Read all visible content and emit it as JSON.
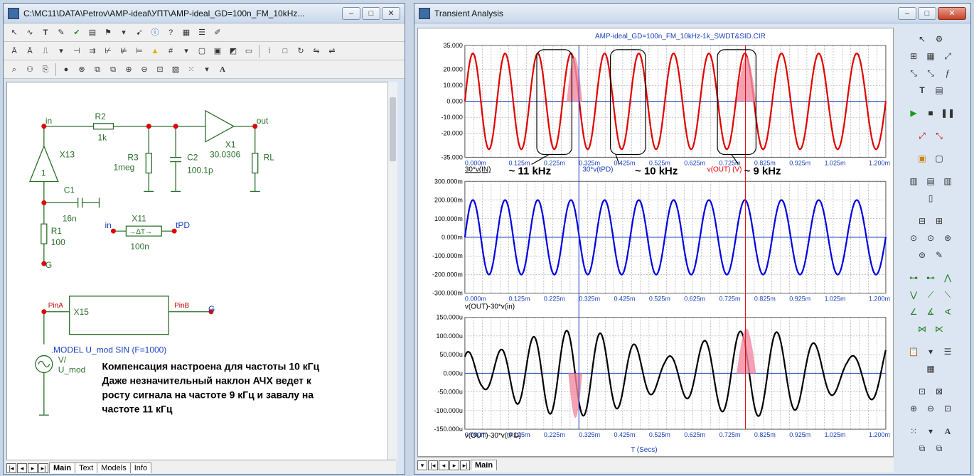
{
  "left_window": {
    "title": "C:\\MC11\\DATA\\Petrov\\AMP-ideal\\УПТ\\AMP-ideal_GD=100n_FM_10kHz...",
    "tabs": [
      {
        "label": "Main",
        "active": true
      },
      {
        "label": "Text",
        "active": false
      },
      {
        "label": "Models",
        "active": false
      },
      {
        "label": "Info",
        "active": false
      }
    ]
  },
  "schematic": {
    "nodes": {
      "in": "in",
      "out": "out",
      "g1": "G",
      "g2": "G",
      "in2": "in",
      "tpd": "tPD",
      "pina": "PinA",
      "pinb": "PinB"
    },
    "components": {
      "r2_name": "R2",
      "r2_val": "1k",
      "r3_name": "R3",
      "r3_val": "1meg",
      "c2_name": "C2",
      "c2_val": "100.1p",
      "x1_name": "X1",
      "x1_val": "30.0306",
      "rl_name": "RL",
      "x13_name": "X13",
      "x13_gain": "1",
      "c1_name": "C1",
      "c1_val": "16n",
      "r1_name": "R1",
      "r1_val": "100",
      "x11_name": "X11",
      "x11_val": "100n",
      "x11_sym": "→ΔT→",
      "x15_name": "X15",
      "v_model": ".MODEL U_mod SIN (F=1000)",
      "v_name": "V/",
      "v_src": "U_mod"
    },
    "note_lines": [
      "Компенсация настроена для частоты 10 кГц",
      "Даже незначительный наклон АЧХ ведет к",
      "росту сигнала на частоте 9 кГц и завалу на",
      "частоте 11 кГц"
    ]
  },
  "right_window": {
    "title": "Transient Analysis",
    "tabs": [
      {
        "label": "Main",
        "active": true
      }
    ]
  },
  "plot": {
    "title": "AMP-ideal_GD=100n_FM_10kHz-1k_SWDT&SID.CIR",
    "x_ticks": [
      "0.000m",
      "0.125m",
      "0.225m",
      "0.325m",
      "0.425m",
      "0.525m",
      "0.625m",
      "0.725m",
      "0.825m",
      "0.925m",
      "1.025m",
      "1.200m"
    ],
    "x_title": "T (Secs)",
    "cursor_times_ms": [
      0.325,
      0.8
    ],
    "panel1": {
      "y_ticks": [
        "35.000",
        "20.000",
        "10.000",
        "0.000",
        "-10.000",
        "-20.000",
        "-35.000"
      ],
      "y_values": [
        35,
        20,
        10,
        0,
        -10,
        -20,
        -35
      ],
      "legend": [
        "30*v(IN)",
        "30*v(tPD)",
        "v(OUT) (V)"
      ],
      "annotations": [
        "~ 11 kHz",
        "~ 10 kHz",
        "~ 9 kHz"
      ],
      "color": "#e00000"
    },
    "panel2": {
      "y_ticks": [
        "300.000m",
        "200.000m",
        "100.000m",
        "0.000m",
        "-100.000m",
        "-200.000m",
        "-300.000m"
      ],
      "y_values": [
        300,
        200,
        100,
        0,
        -100,
        -200,
        -300
      ],
      "legend": [
        "v(OUT)-30*v(in)"
      ],
      "color": "#0000e0"
    },
    "panel3": {
      "y_ticks": [
        "150.000u",
        "100.000u",
        "50.000u",
        "0.000u",
        "-50.000u",
        "-100.000u",
        "-150.000u"
      ],
      "y_values": [
        150,
        100,
        50,
        0,
        -50,
        -100,
        -150
      ],
      "legend": [
        "v(OUT)-30*v(tPD)"
      ],
      "color": "#000000"
    }
  },
  "chart_data": [
    {
      "type": "line",
      "title": "AMP-ideal_GD=100n_FM_10kHz-1k_SWDT&SID.CIR",
      "xlabel": "T (Secs)",
      "ylabel": "",
      "xlim": [
        0,
        1.2
      ],
      "ylim": [
        -35,
        35
      ],
      "series": [
        {
          "name": "v(OUT) (V)",
          "description": "FM sine, amplitude ~30, frequency swept ~9-11 kHz"
        }
      ]
    },
    {
      "type": "line",
      "xlabel": "T (Secs)",
      "ylim": [
        -300,
        300
      ],
      "series": [
        {
          "name": "v(OUT)-30*v(in)",
          "amplitude_m": 200
        }
      ]
    },
    {
      "type": "line",
      "xlabel": "T (Secs)",
      "ylim": [
        -150,
        150
      ],
      "series": [
        {
          "name": "v(OUT)-30*v(tPD)",
          "peaks_u": [
            40,
            -60,
            110,
            -110,
            60,
            -40,
            20,
            -20,
            90,
            -90,
            115,
            -100
          ]
        }
      ]
    }
  ]
}
